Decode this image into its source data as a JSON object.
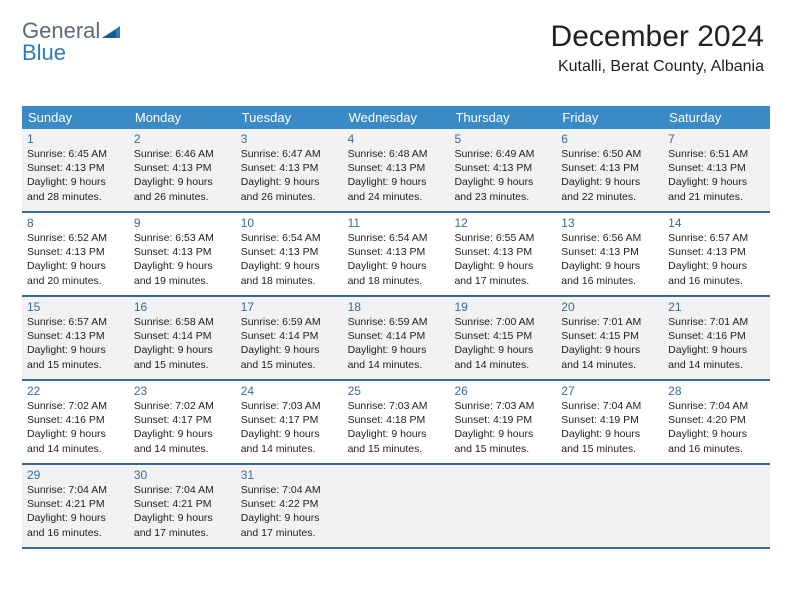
{
  "brand": {
    "part1": "General",
    "part2": "Blue"
  },
  "header": {
    "month_title": "December 2024",
    "location": "Kutalli, Berat County, Albania"
  },
  "colors": {
    "header_bg": "#3a8ac6",
    "rule": "#3a6a9a",
    "shade": "#f2f2f2",
    "logo_gray": "#5a6b7a",
    "logo_blue": "#2d7cc0"
  },
  "day_names": [
    "Sunday",
    "Monday",
    "Tuesday",
    "Wednesday",
    "Thursday",
    "Friday",
    "Saturday"
  ],
  "weeks": [
    [
      {
        "n": "1",
        "sr": "6:45 AM",
        "ss": "4:13 PM",
        "dl": "9 hours and 28 minutes."
      },
      {
        "n": "2",
        "sr": "6:46 AM",
        "ss": "4:13 PM",
        "dl": "9 hours and 26 minutes."
      },
      {
        "n": "3",
        "sr": "6:47 AM",
        "ss": "4:13 PM",
        "dl": "9 hours and 26 minutes."
      },
      {
        "n": "4",
        "sr": "6:48 AM",
        "ss": "4:13 PM",
        "dl": "9 hours and 24 minutes."
      },
      {
        "n": "5",
        "sr": "6:49 AM",
        "ss": "4:13 PM",
        "dl": "9 hours and 23 minutes."
      },
      {
        "n": "6",
        "sr": "6:50 AM",
        "ss": "4:13 PM",
        "dl": "9 hours and 22 minutes."
      },
      {
        "n": "7",
        "sr": "6:51 AM",
        "ss": "4:13 PM",
        "dl": "9 hours and 21 minutes."
      }
    ],
    [
      {
        "n": "8",
        "sr": "6:52 AM",
        "ss": "4:13 PM",
        "dl": "9 hours and 20 minutes."
      },
      {
        "n": "9",
        "sr": "6:53 AM",
        "ss": "4:13 PM",
        "dl": "9 hours and 19 minutes."
      },
      {
        "n": "10",
        "sr": "6:54 AM",
        "ss": "4:13 PM",
        "dl": "9 hours and 18 minutes."
      },
      {
        "n": "11",
        "sr": "6:54 AM",
        "ss": "4:13 PM",
        "dl": "9 hours and 18 minutes."
      },
      {
        "n": "12",
        "sr": "6:55 AM",
        "ss": "4:13 PM",
        "dl": "9 hours and 17 minutes."
      },
      {
        "n": "13",
        "sr": "6:56 AM",
        "ss": "4:13 PM",
        "dl": "9 hours and 16 minutes."
      },
      {
        "n": "14",
        "sr": "6:57 AM",
        "ss": "4:13 PM",
        "dl": "9 hours and 16 minutes."
      }
    ],
    [
      {
        "n": "15",
        "sr": "6:57 AM",
        "ss": "4:13 PM",
        "dl": "9 hours and 15 minutes."
      },
      {
        "n": "16",
        "sr": "6:58 AM",
        "ss": "4:14 PM",
        "dl": "9 hours and 15 minutes."
      },
      {
        "n": "17",
        "sr": "6:59 AM",
        "ss": "4:14 PM",
        "dl": "9 hours and 15 minutes."
      },
      {
        "n": "18",
        "sr": "6:59 AM",
        "ss": "4:14 PM",
        "dl": "9 hours and 14 minutes."
      },
      {
        "n": "19",
        "sr": "7:00 AM",
        "ss": "4:15 PM",
        "dl": "9 hours and 14 minutes."
      },
      {
        "n": "20",
        "sr": "7:01 AM",
        "ss": "4:15 PM",
        "dl": "9 hours and 14 minutes."
      },
      {
        "n": "21",
        "sr": "7:01 AM",
        "ss": "4:16 PM",
        "dl": "9 hours and 14 minutes."
      }
    ],
    [
      {
        "n": "22",
        "sr": "7:02 AM",
        "ss": "4:16 PM",
        "dl": "9 hours and 14 minutes."
      },
      {
        "n": "23",
        "sr": "7:02 AM",
        "ss": "4:17 PM",
        "dl": "9 hours and 14 minutes."
      },
      {
        "n": "24",
        "sr": "7:03 AM",
        "ss": "4:17 PM",
        "dl": "9 hours and 14 minutes."
      },
      {
        "n": "25",
        "sr": "7:03 AM",
        "ss": "4:18 PM",
        "dl": "9 hours and 15 minutes."
      },
      {
        "n": "26",
        "sr": "7:03 AM",
        "ss": "4:19 PM",
        "dl": "9 hours and 15 minutes."
      },
      {
        "n": "27",
        "sr": "7:04 AM",
        "ss": "4:19 PM",
        "dl": "9 hours and 15 minutes."
      },
      {
        "n": "28",
        "sr": "7:04 AM",
        "ss": "4:20 PM",
        "dl": "9 hours and 16 minutes."
      }
    ],
    [
      {
        "n": "29",
        "sr": "7:04 AM",
        "ss": "4:21 PM",
        "dl": "9 hours and 16 minutes."
      },
      {
        "n": "30",
        "sr": "7:04 AM",
        "ss": "4:21 PM",
        "dl": "9 hours and 17 minutes."
      },
      {
        "n": "31",
        "sr": "7:04 AM",
        "ss": "4:22 PM",
        "dl": "9 hours and 17 minutes."
      },
      null,
      null,
      null,
      null
    ]
  ],
  "labels": {
    "sunrise": "Sunrise:",
    "sunset": "Sunset:",
    "daylight": "Daylight:"
  }
}
